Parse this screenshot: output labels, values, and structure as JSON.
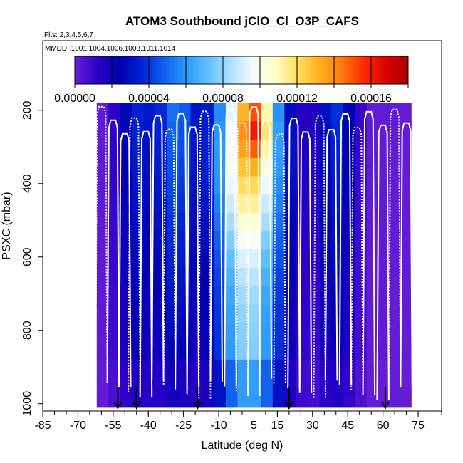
{
  "chart_data": {
    "type": "heatmap",
    "title": "ATOM3 Southbound jClO_Cl_O3P_CAFS",
    "flights_label": "Flts: 2,3,4,5,6,7",
    "dates_label": "MMDD: 1001,1004,1006,1008,1011,1014",
    "xlabel": "Latitude (deg N)",
    "ylabel": "PSXC (mbar)",
    "xlim": [
      -85,
      85
    ],
    "ylim": [
      1020,
      10
    ],
    "x_ticks": [
      -85,
      -70,
      -55,
      -40,
      -25,
      -10,
      5,
      15,
      30,
      45,
      60,
      75
    ],
    "x_tick_labels": [
      "-85",
      "-70",
      "-55",
      "-40",
      "-25",
      "-10",
      "5",
      "15",
      "30",
      "45",
      "60",
      "75"
    ],
    "y_ticks": [
      200,
      400,
      600,
      800,
      1000
    ],
    "y_tick_labels": [
      "200",
      "400",
      "600",
      "800",
      "1000"
    ],
    "colorbar": {
      "min": 0.0,
      "max": 0.00018,
      "ticks": [
        0.0,
        4e-05,
        8e-05,
        0.00012,
        0.00016
      ],
      "tick_labels": [
        "0.00000",
        "0.00004",
        "0.00008",
        "0.00012",
        "0.00016"
      ],
      "colors": [
        "#6a1fd6",
        "#2a00c8",
        "#0000b0",
        "#0022d4",
        "#1060ee",
        "#2a98f8",
        "#60c0ff",
        "#aee0ff",
        "#f4fbff",
        "#ffffc8",
        "#ffe060",
        "#ffb020",
        "#ff7a10",
        "#ff2a00",
        "#dc0000",
        "#a80000"
      ]
    },
    "regions_note": "approximate value field (value units) by latitude/pressure",
    "lat_bins": [
      -62,
      -57,
      -52,
      -47,
      -42,
      -37,
      -32,
      -27,
      -22,
      -17,
      -12,
      -7,
      -2,
      3,
      8,
      13,
      18,
      23,
      28,
      33,
      38,
      43,
      48,
      53,
      58,
      63,
      68,
      72
    ],
    "pressure_bins": [
      180,
      230,
      280,
      330,
      380,
      430,
      480,
      530,
      580,
      630,
      680,
      730,
      780,
      830,
      880,
      930,
      980,
      1010
    ],
    "arrows_lat": [
      -53,
      -45,
      -19,
      20,
      61
    ],
    "profile_markers_lat": [
      -60,
      -55,
      -50,
      -46,
      -41,
      -36,
      -31,
      -26,
      -21,
      -16,
      -11,
      -5,
      0,
      5,
      10,
      16,
      22,
      27,
      33,
      38,
      44,
      49,
      54,
      60,
      65,
      70
    ]
  }
}
